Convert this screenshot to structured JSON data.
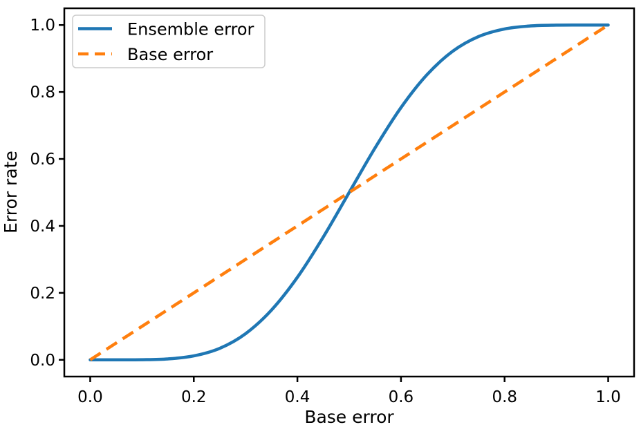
{
  "figure": {
    "background": "#ffffff"
  },
  "chart_data": {
    "type": "line",
    "title": "",
    "xlabel": "Base error",
    "ylabel": "Error rate",
    "xlim": [
      -0.05,
      1.05
    ],
    "ylim": [
      -0.05,
      1.05
    ],
    "xticks": [
      0.0,
      0.2,
      0.4,
      0.6,
      0.8,
      1.0
    ],
    "yticks": [
      0.0,
      0.2,
      0.4,
      0.6,
      0.8,
      1.0
    ],
    "tick_decimals": 1,
    "grid": false,
    "x": [
      0.0,
      0.05,
      0.1,
      0.15,
      0.2,
      0.25,
      0.3,
      0.35,
      0.4,
      0.45,
      0.5,
      0.55,
      0.6,
      0.65,
      0.7,
      0.75,
      0.8,
      0.85,
      0.9,
      0.95,
      1.0
    ],
    "series": [
      {
        "name": "Ensemble error",
        "color": "#1f77b4",
        "line_style": "solid",
        "line_width": 4.5,
        "values": [
          0.0,
          5.6e-06,
          0.0003,
          0.0027,
          0.0117,
          0.0343,
          0.0782,
          0.1487,
          0.2465,
          0.3669,
          0.5,
          0.6331,
          0.7535,
          0.8513,
          0.9218,
          0.9657,
          0.9883,
          0.9973,
          0.9997,
          0.999994,
          1.0
        ]
      },
      {
        "name": "Base error",
        "color": "#ff7f0e",
        "line_style": "dashed",
        "line_width": 4.5,
        "values": [
          0.0,
          0.05,
          0.1,
          0.15,
          0.2,
          0.25,
          0.3,
          0.35,
          0.4,
          0.45,
          0.5,
          0.55,
          0.6,
          0.65,
          0.7,
          0.75,
          0.8,
          0.85,
          0.9,
          0.95,
          1.0
        ]
      }
    ],
    "legend": {
      "position": "upper left",
      "border_color": "#cccccc",
      "background": "#ffffff"
    },
    "axis": {
      "frame_color": "#000000",
      "text_color": "#000000",
      "tick_length": 8
    }
  }
}
